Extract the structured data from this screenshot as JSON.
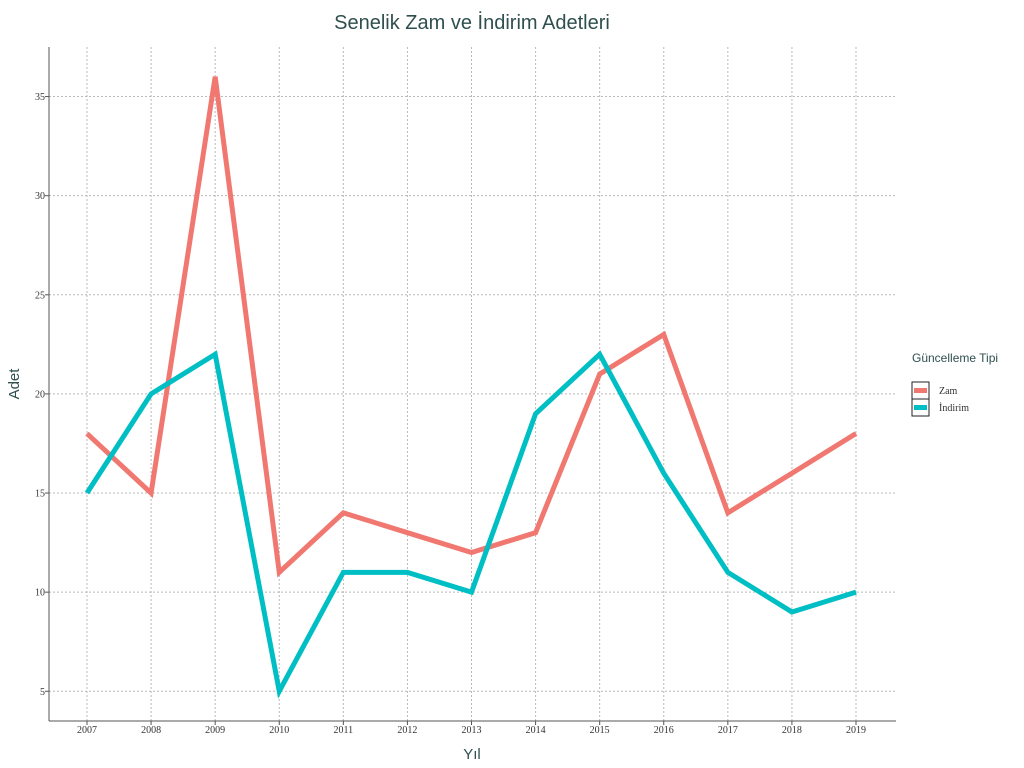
{
  "chart_data": {
    "type": "line",
    "title": "Senelik Zam ve İndirim Adetleri",
    "xlabel": "Yıl",
    "ylabel": "Adet",
    "x": [
      "2007",
      "2008",
      "2009",
      "2010",
      "2011",
      "2012",
      "2013",
      "2014",
      "2015",
      "2016",
      "2017",
      "2018",
      "2019"
    ],
    "yticks": [
      5,
      10,
      15,
      20,
      25,
      30,
      35
    ],
    "ylim": [
      3.5,
      37.5
    ],
    "grid": true,
    "legend": {
      "title": "Güncelleme Tipi",
      "position": "right"
    },
    "series": [
      {
        "name": "Zam",
        "color": "#f07870",
        "values": [
          18,
          15,
          36,
          11,
          14,
          13,
          12,
          13,
          21,
          23,
          14,
          16,
          18
        ]
      },
      {
        "name": "İndirim",
        "color": "#00bfc4",
        "values": [
          15,
          20,
          22,
          5,
          11,
          11,
          10,
          19,
          22,
          16,
          11,
          9,
          10
        ]
      }
    ]
  }
}
